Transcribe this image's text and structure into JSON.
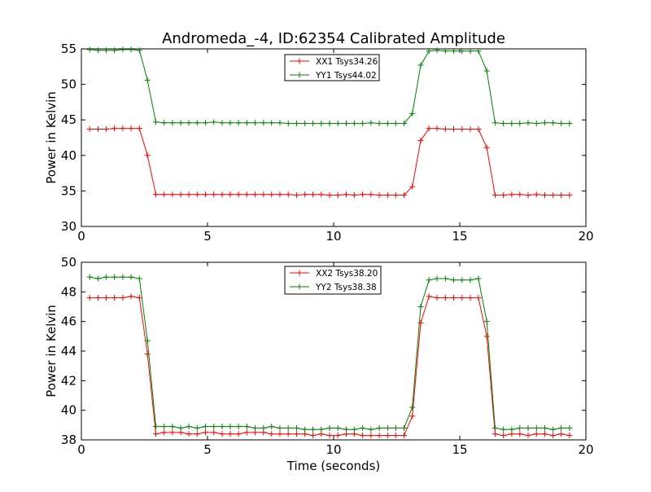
{
  "chart_data": [
    {
      "type": "line",
      "title": "Andromeda_-4, ID:62354 Calibrated Amplitude",
      "xlabel": "",
      "ylabel": "Power in Kelvin",
      "xlim": [
        0,
        20
      ],
      "ylim": [
        30,
        55
      ],
      "xticks": [
        "0",
        "5",
        "10",
        "15",
        "20"
      ],
      "yticks": [
        "30",
        "35",
        "40",
        "45",
        "50",
        "55"
      ],
      "grid": false,
      "legend_position": "top-center",
      "x": [
        0.33,
        0.66,
        0.98,
        1.31,
        1.64,
        1.97,
        2.3,
        2.62,
        2.95,
        3.28,
        3.61,
        3.94,
        4.26,
        4.59,
        4.92,
        5.25,
        5.58,
        5.9,
        6.23,
        6.56,
        6.89,
        7.22,
        7.54,
        7.87,
        8.2,
        8.53,
        8.86,
        9.18,
        9.51,
        9.84,
        10.17,
        10.5,
        10.82,
        11.15,
        11.48,
        11.81,
        12.14,
        12.46,
        12.79,
        13.12,
        13.45,
        13.78,
        14.1,
        14.43,
        14.76,
        15.09,
        15.42,
        15.74,
        16.07,
        16.4,
        16.73,
        17.06,
        17.38,
        17.71,
        18.04,
        18.37,
        18.7,
        19.02,
        19.35
      ],
      "series": [
        {
          "name": "XX1 Tsys34.26",
          "color": "#ff0000",
          "values": [
            43.7,
            43.7,
            43.7,
            43.8,
            43.8,
            43.8,
            43.8,
            40.0,
            34.5,
            34.5,
            34.5,
            34.5,
            34.5,
            34.5,
            34.5,
            34.5,
            34.5,
            34.5,
            34.5,
            34.5,
            34.5,
            34.5,
            34.5,
            34.5,
            34.5,
            34.4,
            34.5,
            34.5,
            34.5,
            34.4,
            34.4,
            34.5,
            34.4,
            34.5,
            34.5,
            34.4,
            34.4,
            34.4,
            34.4,
            35.6,
            42.1,
            43.8,
            43.8,
            43.7,
            43.7,
            43.7,
            43.7,
            43.7,
            41.1,
            34.4,
            34.4,
            34.5,
            34.5,
            34.4,
            34.5,
            34.4,
            34.4,
            34.4,
            34.4
          ]
        },
        {
          "name": "YY1 Tsys44.02",
          "color": "#008000",
          "values": [
            54.9,
            54.8,
            54.8,
            54.8,
            54.9,
            54.9,
            54.8,
            50.6,
            44.7,
            44.6,
            44.6,
            44.6,
            44.6,
            44.6,
            44.6,
            44.7,
            44.6,
            44.6,
            44.6,
            44.6,
            44.6,
            44.6,
            44.6,
            44.6,
            44.5,
            44.5,
            44.5,
            44.5,
            44.5,
            44.5,
            44.5,
            44.5,
            44.5,
            44.5,
            44.6,
            44.5,
            44.5,
            44.5,
            44.5,
            45.9,
            52.7,
            54.7,
            54.8,
            54.7,
            54.7,
            54.7,
            54.7,
            54.7,
            51.9,
            44.6,
            44.5,
            44.5,
            44.5,
            44.6,
            44.5,
            44.6,
            44.6,
            44.5,
            44.5
          ]
        }
      ]
    },
    {
      "type": "line",
      "title": "",
      "xlabel": "Time (seconds)",
      "ylabel": "Power in Kelvin",
      "xlim": [
        0,
        20
      ],
      "ylim": [
        38,
        50
      ],
      "xticks": [
        "0",
        "5",
        "10",
        "15",
        "20"
      ],
      "yticks": [
        "38",
        "40",
        "42",
        "44",
        "46",
        "48",
        "50"
      ],
      "grid": false,
      "legend_position": "top-center",
      "x": [
        0.33,
        0.66,
        0.98,
        1.31,
        1.64,
        1.97,
        2.3,
        2.62,
        2.95,
        3.28,
        3.61,
        3.94,
        4.26,
        4.59,
        4.92,
        5.25,
        5.58,
        5.9,
        6.23,
        6.56,
        6.89,
        7.22,
        7.54,
        7.87,
        8.2,
        8.53,
        8.86,
        9.18,
        9.51,
        9.84,
        10.17,
        10.5,
        10.82,
        11.15,
        11.48,
        11.81,
        12.14,
        12.46,
        12.79,
        13.12,
        13.45,
        13.78,
        14.1,
        14.43,
        14.76,
        15.09,
        15.42,
        15.74,
        16.07,
        16.4,
        16.73,
        17.06,
        17.38,
        17.71,
        18.04,
        18.37,
        18.7,
        19.02,
        19.35
      ],
      "series": [
        {
          "name": "XX2 Tsys38.20",
          "color": "#ff0000",
          "values": [
            47.6,
            47.6,
            47.6,
            47.6,
            47.6,
            47.7,
            47.6,
            43.8,
            38.4,
            38.5,
            38.5,
            38.5,
            38.4,
            38.4,
            38.5,
            38.5,
            38.4,
            38.4,
            38.4,
            38.5,
            38.5,
            38.5,
            38.4,
            38.4,
            38.4,
            38.4,
            38.4,
            38.3,
            38.4,
            38.3,
            38.3,
            38.4,
            38.4,
            38.3,
            38.3,
            38.3,
            38.3,
            38.3,
            38.3,
            39.6,
            45.9,
            47.7,
            47.6,
            47.6,
            47.6,
            47.6,
            47.6,
            47.6,
            45.0,
            38.4,
            38.3,
            38.4,
            38.4,
            38.3,
            38.4,
            38.4,
            38.3,
            38.4,
            38.3
          ]
        },
        {
          "name": "YY2 Tsys38.38",
          "color": "#008000",
          "values": [
            49.0,
            48.9,
            49.0,
            49.0,
            49.0,
            49.0,
            48.9,
            44.7,
            38.9,
            38.9,
            38.9,
            38.8,
            38.9,
            38.8,
            38.9,
            38.9,
            38.9,
            38.9,
            38.9,
            38.9,
            38.8,
            38.8,
            38.9,
            38.8,
            38.8,
            38.8,
            38.7,
            38.7,
            38.7,
            38.8,
            38.8,
            38.7,
            38.7,
            38.8,
            38.7,
            38.8,
            38.8,
            38.8,
            38.8,
            40.2,
            47.0,
            48.8,
            48.9,
            48.9,
            48.8,
            48.8,
            48.8,
            48.9,
            46.0,
            38.8,
            38.7,
            38.7,
            38.8,
            38.8,
            38.8,
            38.8,
            38.7,
            38.8,
            38.8
          ]
        }
      ]
    }
  ]
}
